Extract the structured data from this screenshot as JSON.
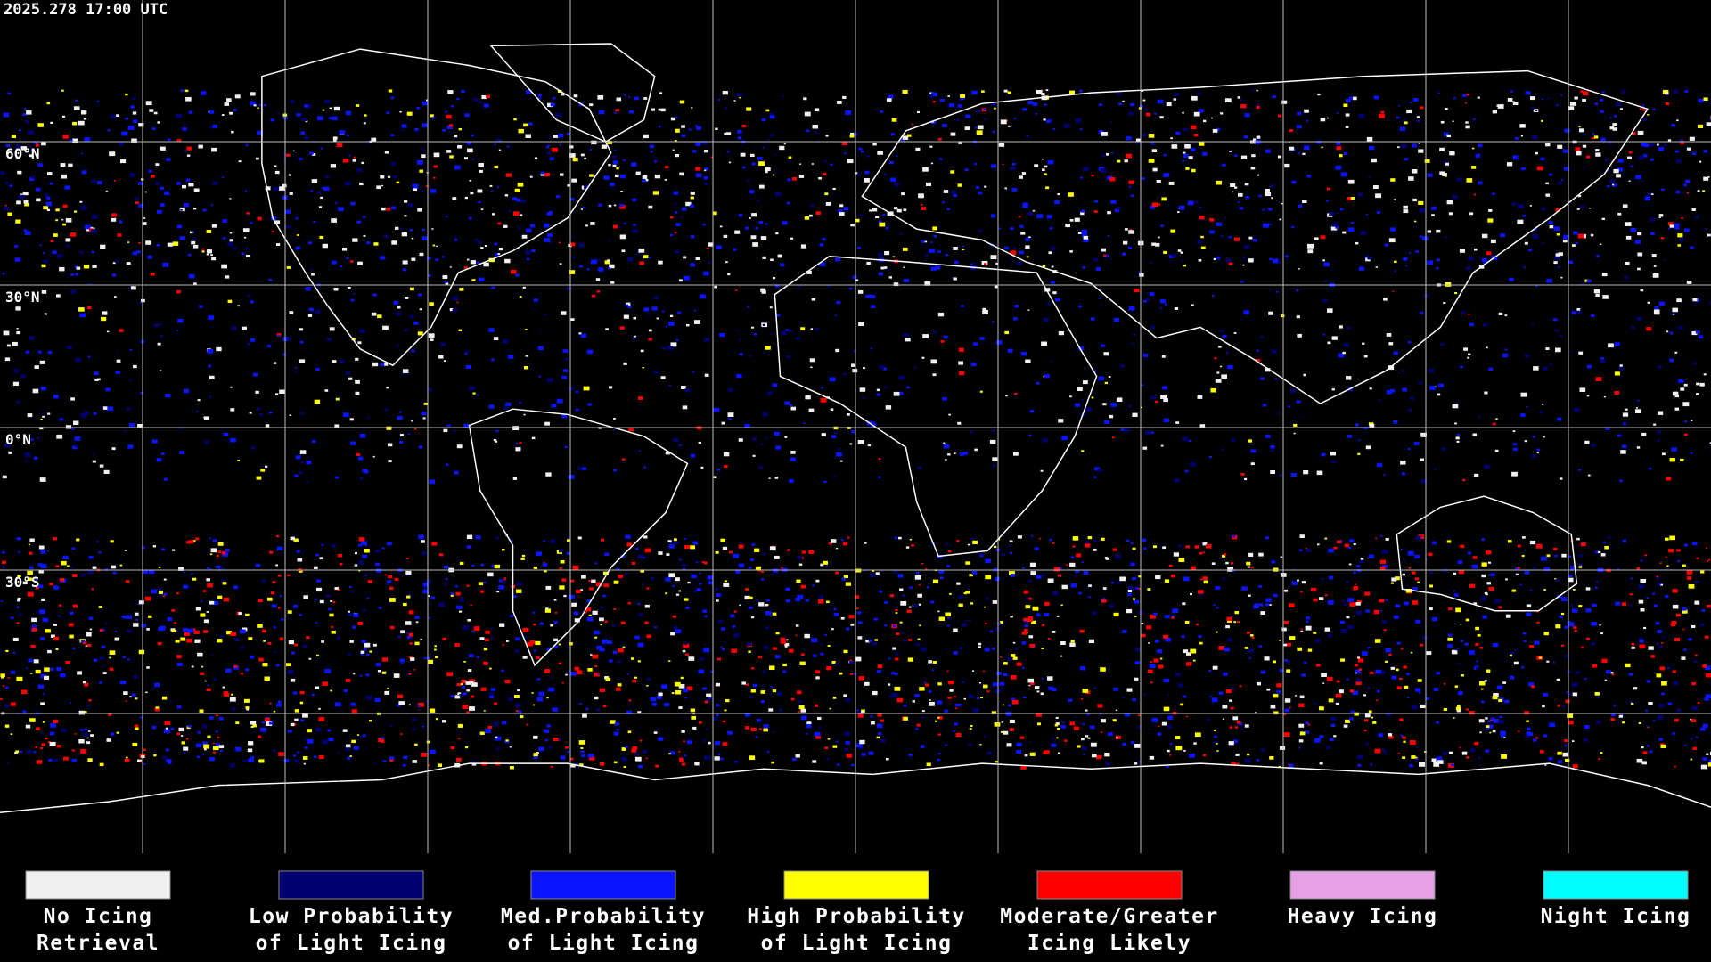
{
  "timestamp": "2025.278 17:00 UTC",
  "grid_labels": [
    "60°N",
    "30°N",
    "0°N",
    "30°S"
  ],
  "legend": [
    {
      "label": [
        "No Icing",
        "Retrieval"
      ],
      "color": "#f0f0f0"
    },
    {
      "label": [
        "Low Probability",
        "of Light Icing"
      ],
      "color": "#000070"
    },
    {
      "label": [
        "Med.Probability",
        "of Light Icing"
      ],
      "color": "#0a14ff"
    },
    {
      "label": [
        "High Probability",
        "of Light Icing"
      ],
      "color": "#ffff00"
    },
    {
      "label": [
        "Moderate/Greater",
        "Icing Likely"
      ],
      "color": "#ff0000"
    },
    {
      "label": [
        "Heavy Icing"
      ],
      "color": "#e6a0e6"
    },
    {
      "label": [
        "Night Icing"
      ],
      "color": "#00ffff"
    }
  ]
}
